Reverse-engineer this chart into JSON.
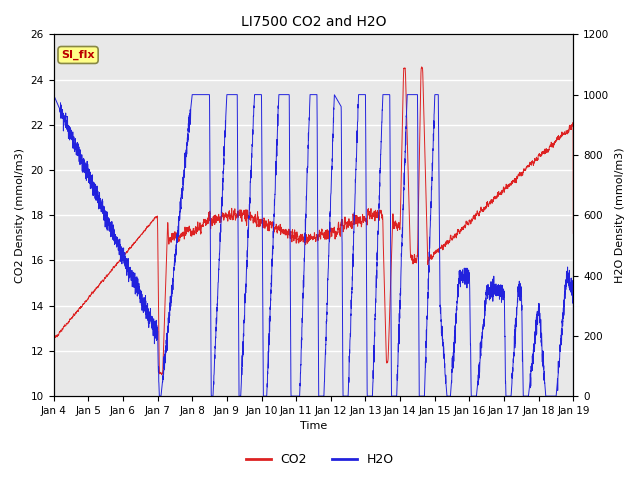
{
  "title": "LI7500 CO2 and H2O",
  "xlabel": "Time",
  "ylabel_left": "CO2 Density (mmol/m3)",
  "ylabel_right": "H2O Density (mmol/m3)",
  "ylim_left": [
    10,
    26
  ],
  "ylim_right": [
    0,
    1200
  ],
  "yticks_left": [
    10,
    12,
    14,
    16,
    18,
    20,
    22,
    24,
    26
  ],
  "yticks_right": [
    0,
    200,
    400,
    600,
    800,
    1000,
    1200
  ],
  "xtick_labels": [
    "Jan 4",
    "Jan 5",
    "Jan 6",
    "Jan 7",
    "Jan 8",
    "Jan 9",
    "Jan 10",
    "Jan 11",
    "Jan 12",
    "Jan 13",
    "Jan 14",
    "Jan 15",
    "Jan 16",
    "Jan 17",
    "Jan 18",
    "Jan 19"
  ],
  "co2_color": "#dd2222",
  "h2o_color": "#2222dd",
  "plot_bg_color": "#e8e8e8",
  "legend_co2": "CO2",
  "legend_h2o": "H2O",
  "annotation_text": "SI_flx",
  "annotation_color": "#bb0000",
  "annotation_bg": "#ffff88",
  "title_fontsize": 10,
  "axis_fontsize": 8,
  "tick_fontsize": 7.5
}
